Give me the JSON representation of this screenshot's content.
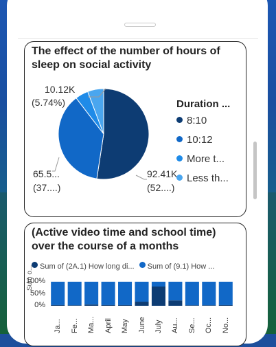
{
  "colors": {
    "series1": "#0d3c73",
    "series2": "#1168c7",
    "series3": "#1f8be8",
    "series4": "#4aa6ef"
  },
  "card1": {
    "title": "The effect of the number of hours of sleep on social activity",
    "legend_title": "Duration ...",
    "legend": [
      "8:10",
      "10:12",
      "More t...",
      "Less th..."
    ],
    "labels": {
      "top_value": "10.12K",
      "top_pct": "(5.74%)",
      "left_value": "65.5...",
      "left_pct": "(37....)",
      "right_value": "92.41K",
      "right_pct": "(52....)"
    }
  },
  "card2": {
    "title": "(Active video time and school time) over the course of a months",
    "legend": [
      "Sum of (2A.1)  How long di...",
      "Sum of (9.1)  How ..."
    ],
    "yaxis_title": "Sum o..."
  },
  "chart_data": [
    {
      "type": "pie",
      "title": "The effect of the number of hours of sleep on social activity",
      "legend_title": "Duration ...",
      "categories": [
        "8:10",
        "10:12",
        "More t...",
        "Less th..."
      ],
      "values": [
        92.41,
        65.5,
        8.2,
        10.12
      ],
      "unit": "K",
      "percent_labels": [
        "(52....)",
        "(37....)",
        "",
        "(5.74%)"
      ]
    },
    {
      "type": "bar",
      "stacked": "100%",
      "title": "(Active video time and school time) over the course of a months",
      "categories": [
        "Ja...",
        "Fe...",
        "Ma...",
        "April",
        "May",
        "June",
        "July",
        "Au...",
        "Se...",
        "Oc...",
        "No..."
      ],
      "series": [
        {
          "name": "Sum of (2A.1) How long di...",
          "values": [
            3,
            2,
            5,
            3,
            3,
            17,
            80,
            22,
            2,
            2,
            3
          ]
        },
        {
          "name": "Sum of (9.1) How ...",
          "values": [
            97,
            98,
            95,
            97,
            97,
            83,
            20,
            78,
            98,
            98,
            97
          ]
        }
      ],
      "yticks": [
        "100%",
        "50%",
        "0%"
      ],
      "ylim": [
        0,
        100
      ],
      "ylabel": "Sum o..."
    }
  ]
}
